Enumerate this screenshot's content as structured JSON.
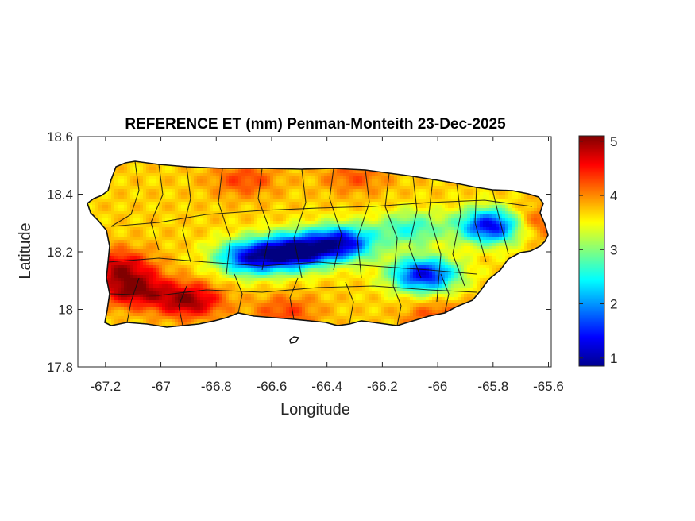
{
  "chart_data": {
    "type": "heatmap",
    "title": "REFERENCE ET (mm) Penman-Monteith 23-Dec-2025",
    "xlabel": "Longitude",
    "ylabel": "Latitude",
    "xlim": [
      -67.3,
      -65.59
    ],
    "ylim": [
      17.8,
      18.6
    ],
    "xticks": [
      -67.2,
      -67,
      -66.8,
      -66.6,
      -66.4,
      -66.2,
      -66,
      -65.8,
      -65.6
    ],
    "xtick_labels": [
      "-67.2",
      "-67",
      "-66.8",
      "-66.6",
      "-66.4",
      "-66.2",
      "-66",
      "-65.8",
      "-65.6"
    ],
    "yticks": [
      17.8,
      18,
      18.2,
      18.4,
      18.6
    ],
    "ytick_labels": [
      "17.8",
      "18",
      "18.2",
      "18.4",
      "18.6"
    ],
    "colorbar": {
      "colormap": "jet",
      "range": [
        0.85,
        5.1
      ],
      "ticks": [
        1,
        2,
        3,
        4,
        5
      ],
      "tick_labels": [
        "1",
        "2",
        "3",
        "4",
        "5"
      ]
    },
    "grid": false,
    "value_field": {
      "base": 3.7,
      "features": [
        {
          "lon": -66.52,
          "lat": 18.2,
          "value": 0.9
        },
        {
          "lon": -66.68,
          "lat": 18.18,
          "value": 1.5
        },
        {
          "lon": -66.35,
          "lat": 18.23,
          "value": 1.2
        },
        {
          "lon": -66.05,
          "lat": 18.12,
          "value": 1.3
        },
        {
          "lon": -65.8,
          "lat": 18.29,
          "value": 1.0
        },
        {
          "lon": -66.1,
          "lat": 18.28,
          "value": 2.6
        },
        {
          "lon": -67.1,
          "lat": 18.07,
          "value": 5.0
        },
        {
          "lon": -66.9,
          "lat": 18.03,
          "value": 5.0
        },
        {
          "lon": -67.15,
          "lat": 18.15,
          "value": 4.7
        },
        {
          "lon": -66.7,
          "lat": 18.45,
          "value": 4.3
        },
        {
          "lon": -66.3,
          "lat": 18.46,
          "value": 4.2
        },
        {
          "lon": -65.68,
          "lat": 18.3,
          "value": 4.6
        },
        {
          "lon": -66.55,
          "lat": 17.99,
          "value": 4.3
        },
        {
          "lon": -66.0,
          "lat": 17.97,
          "value": 4.3
        }
      ]
    }
  }
}
